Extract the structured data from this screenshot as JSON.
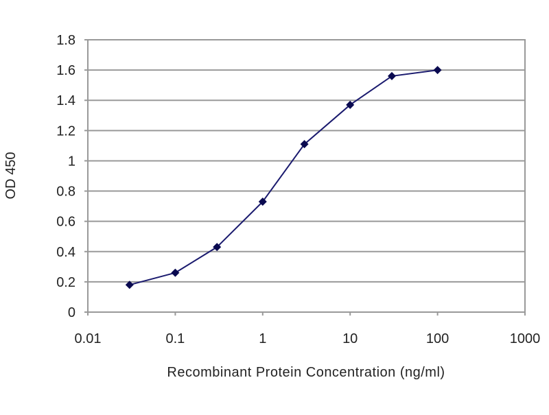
{
  "chart_data": {
    "type": "line",
    "title": "",
    "xlabel": "Recombinant Protein Concentration (ng/ml)",
    "ylabel": "OD 450",
    "x_scale": "log",
    "xlim": [
      0.01,
      1000
    ],
    "ylim": [
      0,
      1.8
    ],
    "x_ticks": [
      "0.01",
      "0.1",
      "1",
      "10",
      "100",
      "1000"
    ],
    "y_ticks": [
      "0",
      "0.2",
      "0.4",
      "0.6",
      "0.8",
      "1",
      "1.2",
      "1.4",
      "1.6",
      "1.8"
    ],
    "grid": "horizontal",
    "series": [
      {
        "x": [
          0.03,
          0.1,
          0.3,
          1,
          3,
          10,
          30,
          100
        ],
        "y": [
          0.18,
          0.26,
          0.43,
          0.73,
          1.11,
          1.37,
          1.56,
          1.6
        ],
        "color": "#1a1a6e",
        "marker": "diamond"
      }
    ]
  }
}
